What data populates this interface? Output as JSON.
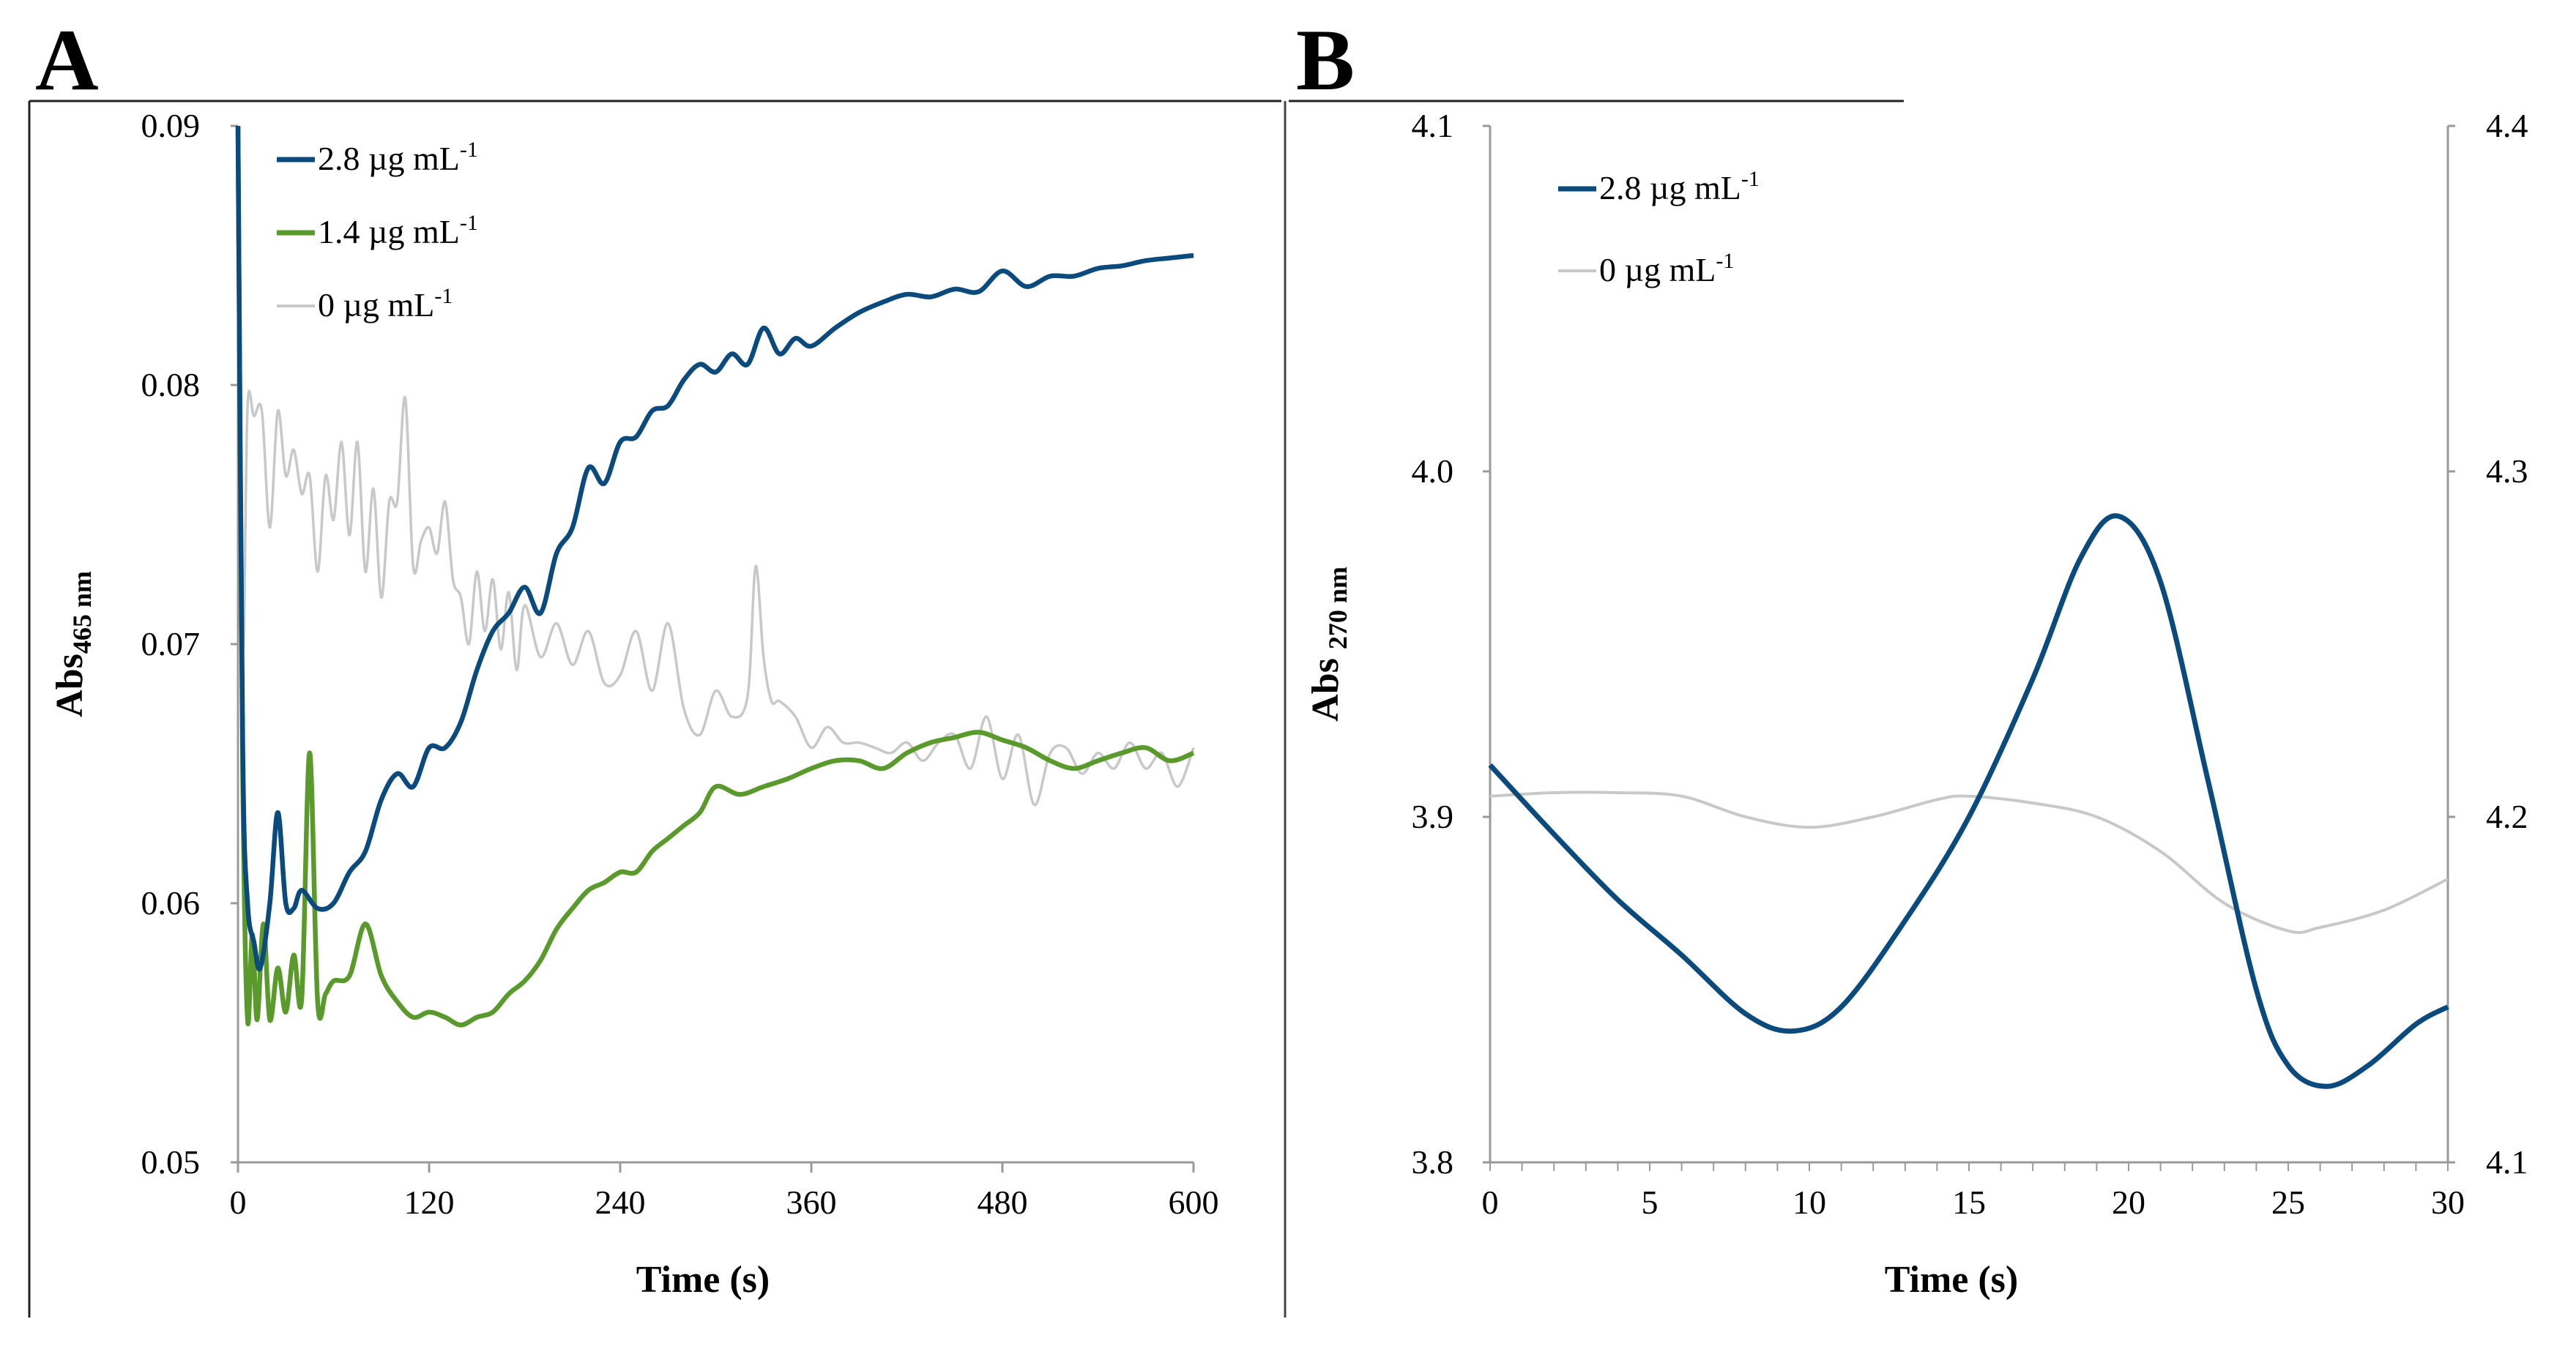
{
  "chart_data": [
    {
      "panel": "A",
      "type": "line",
      "xlabel": "Time (s)",
      "ylabel": "Abs",
      "ylabel_sub": "465 nm",
      "xlim": [
        0,
        600
      ],
      "ylim": [
        0.05,
        0.09
      ],
      "xticks": [
        "0",
        "120",
        "240",
        "360",
        "480",
        "600"
      ],
      "yticks": [
        "0.05",
        "0.06",
        "0.07",
        "0.08",
        "0.09"
      ],
      "grid": false,
      "legend_position": "top-left",
      "series": [
        {
          "name": "2.8",
          "legend_unit": "µg mL",
          "legend_sup": "-1",
          "color": "#0b4a7d",
          "x": [
            0,
            3,
            6,
            10,
            14,
            20,
            25,
            30,
            35,
            40,
            50,
            60,
            70,
            80,
            90,
            100,
            110,
            120,
            130,
            140,
            150,
            160,
            170,
            180,
            190,
            200,
            210,
            220,
            230,
            240,
            250,
            260,
            270,
            280,
            290,
            300,
            310,
            320,
            330,
            340,
            350,
            360,
            375,
            390,
            405,
            420,
            435,
            450,
            465,
            480,
            495,
            510,
            525,
            540,
            555,
            570,
            585,
            600
          ],
          "y": [
            0.09,
            0.066,
            0.06,
            0.0585,
            0.0575,
            0.06,
            0.0635,
            0.06,
            0.0598,
            0.0605,
            0.0598,
            0.06,
            0.0612,
            0.062,
            0.064,
            0.065,
            0.0645,
            0.066,
            0.066,
            0.067,
            0.069,
            0.0705,
            0.0712,
            0.0722,
            0.0712,
            0.0735,
            0.0745,
            0.0768,
            0.0762,
            0.0778,
            0.078,
            0.079,
            0.0792,
            0.0802,
            0.0808,
            0.0805,
            0.0812,
            0.0808,
            0.0822,
            0.0812,
            0.0818,
            0.0815,
            0.0822,
            0.0828,
            0.0832,
            0.0835,
            0.0834,
            0.0837,
            0.0836,
            0.0844,
            0.0838,
            0.0842,
            0.0842,
            0.0845,
            0.0846,
            0.0848,
            0.0849,
            0.085
          ]
        },
        {
          "name": "1.4",
          "legend_unit": "µg mL",
          "legend_sup": "-1",
          "color": "#5a9a2c",
          "x": [
            0,
            3,
            6,
            9,
            12,
            16,
            20,
            25,
            30,
            35,
            40,
            45,
            50,
            55,
            60,
            70,
            80,
            90,
            100,
            110,
            120,
            130,
            140,
            150,
            160,
            170,
            180,
            190,
            200,
            210,
            220,
            230,
            240,
            250,
            260,
            270,
            280,
            290,
            300,
            315,
            330,
            345,
            360,
            375,
            390,
            405,
            420,
            435,
            450,
            465,
            480,
            495,
            510,
            525,
            540,
            555,
            570,
            585,
            600
          ],
          "y": [
            0.09,
            0.065,
            0.0555,
            0.0588,
            0.0555,
            0.0592,
            0.0555,
            0.0575,
            0.0558,
            0.058,
            0.0563,
            0.0658,
            0.0562,
            0.0565,
            0.057,
            0.0572,
            0.0592,
            0.0572,
            0.0562,
            0.0556,
            0.0558,
            0.0556,
            0.0553,
            0.0556,
            0.0558,
            0.0565,
            0.057,
            0.0578,
            0.059,
            0.0598,
            0.0605,
            0.0608,
            0.0612,
            0.0612,
            0.062,
            0.0625,
            0.063,
            0.0635,
            0.0645,
            0.0642,
            0.0645,
            0.0648,
            0.0652,
            0.0655,
            0.0655,
            0.0652,
            0.0658,
            0.0662,
            0.0664,
            0.0666,
            0.0663,
            0.066,
            0.0655,
            0.0652,
            0.0655,
            0.0658,
            0.066,
            0.0655,
            0.0658
          ]
        },
        {
          "name": "0",
          "legend_unit": "µg mL",
          "legend_sup": "-1",
          "color": "#c8c8c8",
          "x": [
            0,
            3,
            6,
            10,
            15,
            20,
            25,
            30,
            35,
            40,
            45,
            50,
            55,
            60,
            65,
            70,
            75,
            80,
            85,
            90,
            95,
            100,
            105,
            110,
            115,
            120,
            125,
            130,
            135,
            140,
            145,
            150,
            155,
            160,
            165,
            170,
            175,
            180,
            190,
            200,
            210,
            220,
            230,
            240,
            250,
            260,
            270,
            280,
            290,
            300,
            310,
            320,
            325,
            330,
            335,
            340,
            350,
            360,
            370,
            380,
            390,
            400,
            410,
            420,
            430,
            440,
            450,
            460,
            470,
            480,
            490,
            500,
            510,
            520,
            530,
            540,
            550,
            560,
            570,
            580,
            590,
            600
          ],
          "y": [
            0.09,
            0.07,
            0.0792,
            0.0788,
            0.079,
            0.0745,
            0.079,
            0.0765,
            0.0775,
            0.0758,
            0.0765,
            0.0728,
            0.0765,
            0.0748,
            0.0778,
            0.0742,
            0.0778,
            0.0728,
            0.076,
            0.0718,
            0.0755,
            0.0755,
            0.0795,
            0.073,
            0.074,
            0.0745,
            0.0735,
            0.0755,
            0.0725,
            0.0718,
            0.07,
            0.0728,
            0.0705,
            0.0725,
            0.0698,
            0.072,
            0.069,
            0.0715,
            0.0695,
            0.0708,
            0.0692,
            0.0705,
            0.0685,
            0.0688,
            0.0705,
            0.0682,
            0.0708,
            0.0675,
            0.0665,
            0.0682,
            0.0672,
            0.068,
            0.073,
            0.0695,
            0.0678,
            0.0678,
            0.0672,
            0.066,
            0.0668,
            0.0662,
            0.0662,
            0.066,
            0.0658,
            0.0662,
            0.0655,
            0.0662,
            0.0665,
            0.0652,
            0.0672,
            0.0648,
            0.0665,
            0.0638,
            0.0658,
            0.066,
            0.065,
            0.0658,
            0.0652,
            0.0662,
            0.0652,
            0.0658,
            0.0645,
            0.066
          ]
        }
      ]
    },
    {
      "panel": "B",
      "type": "line",
      "xlabel": "Time (s)",
      "ylabel": "Abs",
      "ylabel_sub": "270 nm",
      "xlim": [
        0,
        30
      ],
      "ylim": [
        3.8,
        4.1
      ],
      "y2lim": [
        4.1,
        4.4
      ],
      "xticks": [
        "0",
        "5",
        "10",
        "15",
        "20",
        "25",
        "30"
      ],
      "yticks": [
        "3.8",
        "3.9",
        "4.0",
        "4.1"
      ],
      "y2ticks": [
        "4.1",
        "4.2",
        "4.3",
        "4.4"
      ],
      "grid": false,
      "legend_position": "top-left",
      "series": [
        {
          "name": "2.8",
          "legend_unit": "µg mL",
          "legend_sup": "-1",
          "axis": "left",
          "color": "#0b4a7d",
          "x": [
            0,
            2,
            4,
            6,
            8,
            9.5,
            11,
            13,
            15,
            17,
            18.5,
            19.7,
            21,
            22.5,
            24,
            25,
            26.2,
            27.5,
            29,
            30
          ],
          "y": [
            3.915,
            3.895,
            3.876,
            3.86,
            3.843,
            3.838,
            3.845,
            3.87,
            3.9,
            3.94,
            3.975,
            3.987,
            3.968,
            3.91,
            3.85,
            3.828,
            3.822,
            3.828,
            3.84,
            3.845
          ]
        },
        {
          "name": "0",
          "legend_unit": "µg mL",
          "legend_sup": "-1",
          "axis": "right",
          "color": "#c8c8c8",
          "x": [
            0,
            2,
            4,
            6,
            8,
            10,
            12,
            14,
            15,
            17,
            19,
            21,
            23,
            25,
            26,
            28,
            30
          ],
          "y": [
            4.206,
            4.207,
            4.207,
            4.206,
            4.2,
            4.197,
            4.2,
            4.205,
            4.206,
            4.204,
            4.2,
            4.19,
            4.175,
            4.167,
            4.168,
            4.173,
            4.182
          ]
        }
      ]
    }
  ]
}
